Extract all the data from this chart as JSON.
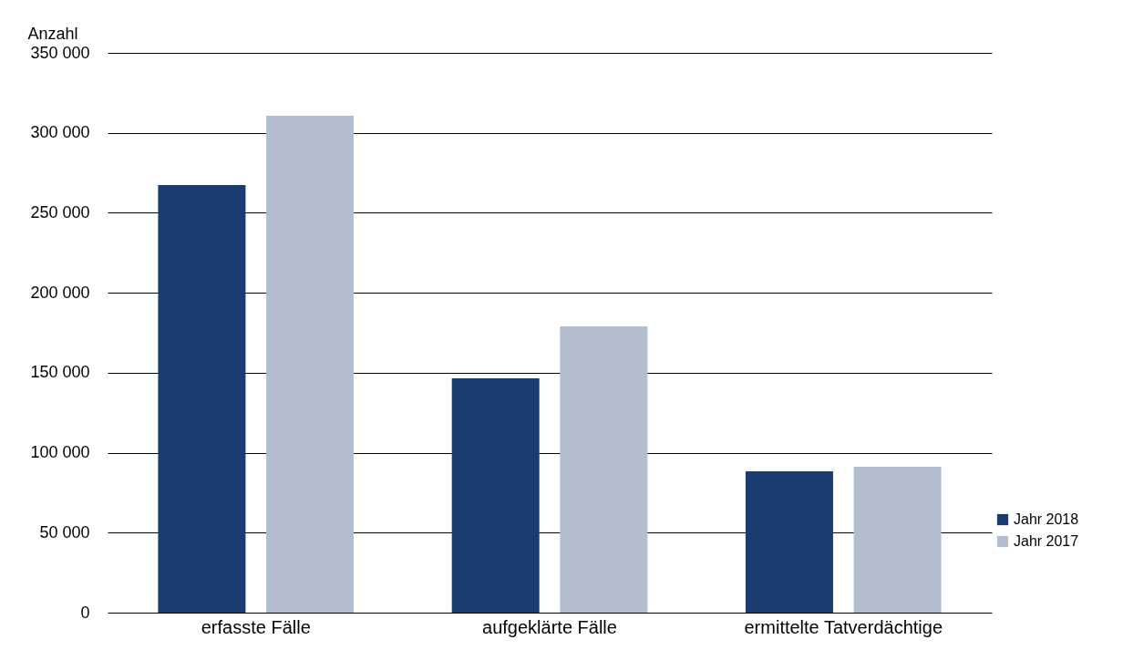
{
  "chart_data": {
    "type": "bar",
    "ylabel": "Anzahl",
    "categories": [
      "erfasste Fälle",
      "aufgeklärte Fälle",
      "ermittelte Tatverdächtige"
    ],
    "series": [
      {
        "name": "Jahr 2018",
        "color": "#1b3c71",
        "values": [
          267300,
          146500,
          88400
        ]
      },
      {
        "name": "Jahr 2017",
        "color": "#b2bed0",
        "values": [
          310700,
          179000,
          91200
        ]
      }
    ],
    "ylim": [
      0,
      350000
    ],
    "yticks": [
      0,
      {
        "value": 50000,
        "label": "50 000"
      },
      {
        "value": 100000,
        "label": "100 000"
      },
      {
        "value": 150000,
        "label": "150 000"
      },
      {
        "value": 200000,
        "label": "200 000"
      },
      {
        "value": 250000,
        "label": "250 000"
      },
      {
        "value": 300000,
        "label": "300 000"
      },
      {
        "value": 350000,
        "label": "350 000"
      }
    ],
    "grid": "y",
    "legend": "right"
  }
}
